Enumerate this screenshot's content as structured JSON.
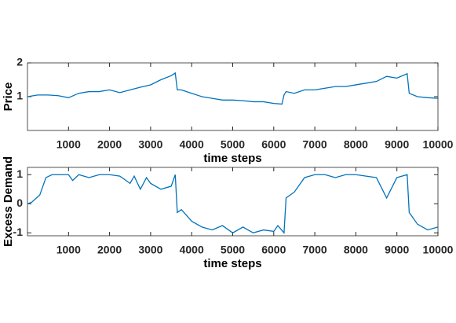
{
  "chart_data": [
    {
      "type": "line",
      "x_label": "time steps",
      "y_label": "Price",
      "x": [
        0,
        250,
        500,
        750,
        1000,
        1250,
        1500,
        1750,
        2000,
        2250,
        2500,
        2750,
        3000,
        3250,
        3500,
        3600,
        3650,
        3750,
        4000,
        4250,
        4500,
        4750,
        5000,
        5250,
        5500,
        5750,
        6000,
        6200,
        6250,
        6300,
        6500,
        6750,
        7000,
        7250,
        7500,
        7750,
        8000,
        8250,
        8500,
        8750,
        9000,
        9250,
        9300,
        9500,
        9750,
        10000
      ],
      "series": [
        {
          "color": "#0072bd",
          "values": [
            1.0,
            1.05,
            1.05,
            1.03,
            0.97,
            1.1,
            1.15,
            1.15,
            1.2,
            1.12,
            1.2,
            1.28,
            1.35,
            1.5,
            1.62,
            1.7,
            1.2,
            1.2,
            1.1,
            1.0,
            0.95,
            0.9,
            0.9,
            0.88,
            0.85,
            0.85,
            0.8,
            0.78,
            1.05,
            1.15,
            1.1,
            1.2,
            1.2,
            1.25,
            1.3,
            1.3,
            1.35,
            1.4,
            1.45,
            1.6,
            1.55,
            1.68,
            1.1,
            1.0,
            0.97,
            0.95
          ]
        }
      ],
      "xlim": [
        0,
        10000
      ],
      "xticks": [
        1000,
        2000,
        3000,
        4000,
        5000,
        6000,
        7000,
        8000,
        9000,
        10000
      ],
      "ylim": [
        0,
        2
      ],
      "yticks": [
        1,
        2
      ]
    },
    {
      "type": "line",
      "x_label": "time steps",
      "y_label": "Excess Demand",
      "x": [
        0,
        100,
        300,
        450,
        600,
        1000,
        1100,
        1250,
        1500,
        1750,
        2000,
        2250,
        2500,
        2600,
        2750,
        2900,
        3000,
        3250,
        3500,
        3600,
        3650,
        3750,
        4000,
        4250,
        4500,
        4750,
        5000,
        5250,
        5500,
        5750,
        6000,
        6100,
        6250,
        6300,
        6500,
        6750,
        7000,
        7250,
        7500,
        7750,
        8000,
        8250,
        8500,
        8750,
        9000,
        9250,
        9300,
        9500,
        9750,
        10000
      ],
      "series": [
        {
          "color": "#0072bd",
          "values": [
            0,
            0.05,
            0.3,
            0.9,
            1.0,
            1.0,
            0.8,
            1.0,
            0.9,
            1.0,
            1.0,
            0.95,
            0.7,
            0.95,
            0.5,
            0.9,
            0.7,
            0.5,
            0.6,
            1.0,
            -0.3,
            -0.2,
            -0.6,
            -0.8,
            -0.9,
            -0.75,
            -1.0,
            -0.8,
            -1.0,
            -0.9,
            -0.95,
            -0.75,
            -1.0,
            0.2,
            0.4,
            0.9,
            1.0,
            1.0,
            0.9,
            1.0,
            1.0,
            0.95,
            0.9,
            0.2,
            0.9,
            1.0,
            -0.3,
            -0.7,
            -0.9,
            -0.8
          ]
        }
      ],
      "xlim": [
        0,
        10000
      ],
      "xticks": [
        1000,
        2000,
        3000,
        4000,
        5000,
        6000,
        7000,
        8000,
        9000,
        10000
      ],
      "ylim": [
        -1.1,
        1.25
      ],
      "yticks": [
        -1,
        0,
        1
      ]
    }
  ]
}
